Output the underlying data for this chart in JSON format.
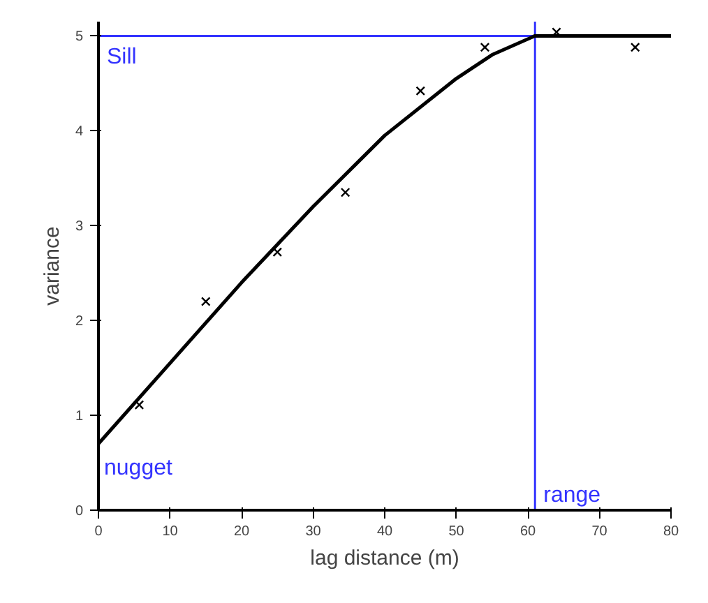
{
  "chart_data": {
    "type": "scatter",
    "xlabel": "lag distance (m)",
    "ylabel": "variance",
    "xlim": [
      0,
      80
    ],
    "ylim": [
      0,
      5.15
    ],
    "xticks": [
      0,
      10,
      20,
      30,
      40,
      50,
      60,
      70,
      80
    ],
    "yticks": [
      0,
      1,
      2,
      3,
      4,
      5
    ],
    "grid": false,
    "series": [
      {
        "marker": "cross",
        "color": "#000000",
        "x": [
          5.7,
          15,
          25,
          34.5,
          45,
          54,
          64,
          75
        ],
        "values": [
          1.11,
          2.2,
          2.72,
          3.35,
          4.42,
          4.88,
          5.04,
          4.88
        ]
      },
      {
        "type": "line",
        "line_style": "solid",
        "color": "#000000",
        "x": [
          0,
          10,
          20,
          30,
          40,
          50,
          55,
          61,
          80
        ],
        "values": [
          0.7,
          1.55,
          2.4,
          3.2,
          3.95,
          4.55,
          4.8,
          5.0,
          5.0
        ]
      }
    ],
    "ref_lines": [
      {
        "axis": "y",
        "value": 5,
        "label": "Sill",
        "color": "#3333ff",
        "line_style": "solid"
      },
      {
        "axis": "x",
        "value": 61,
        "label": "range",
        "color": "#3333ff",
        "line_style": "solid"
      }
    ],
    "annotations": [
      {
        "text": "nugget",
        "x": 0,
        "y": 0.7
      }
    ]
  }
}
